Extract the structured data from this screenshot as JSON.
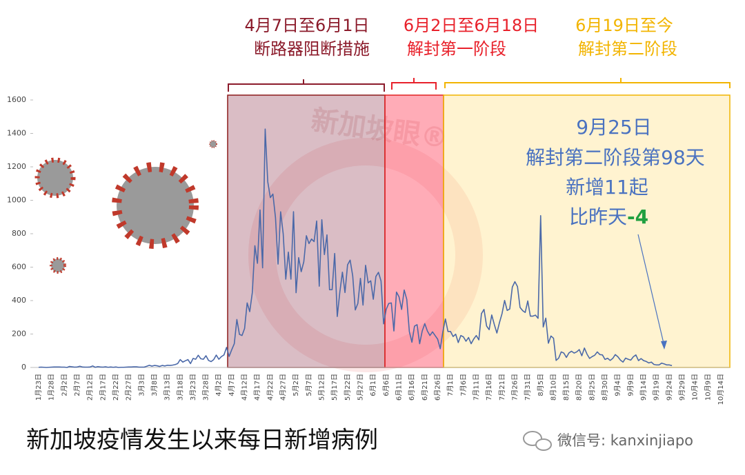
{
  "chart_data": {
    "type": "line",
    "title": "新加坡疫情发生以来每日新增病例",
    "categories": [
      "1月23日",
      null,
      null,
      null,
      null,
      "1月28日",
      null,
      null,
      null,
      null,
      "2月2日",
      null,
      null,
      null,
      null,
      "2月7日",
      null,
      null,
      null,
      null,
      "2月12日",
      null,
      null,
      null,
      null,
      "2月17日",
      null,
      null,
      null,
      null,
      "2月22日",
      null,
      null,
      null,
      null,
      "2月27日",
      null,
      null,
      null,
      null,
      "3月3日",
      null,
      null,
      null,
      null,
      "3月8日",
      null,
      null,
      null,
      null,
      "3月13日",
      null,
      null,
      null,
      null,
      "3月18日",
      null,
      null,
      null,
      null,
      "3月23日",
      null,
      null,
      null,
      null,
      "3月28日",
      null,
      null,
      null,
      null,
      "4月2日",
      null,
      null,
      null,
      null,
      "4月7日",
      null,
      null,
      null,
      null,
      "4月12日",
      null,
      null,
      null,
      null,
      "4月17日",
      null,
      null,
      null,
      null,
      "4月22日",
      null,
      null,
      null,
      null,
      "4月27日",
      null,
      null,
      null,
      null,
      "5月2日",
      null,
      null,
      null,
      null,
      "5月7日",
      null,
      null,
      null,
      null,
      "5月12日",
      null,
      null,
      null,
      null,
      "5月17日",
      null,
      null,
      null,
      null,
      "5月22日",
      null,
      null,
      null,
      null,
      "5月27日",
      null,
      null,
      null,
      null,
      "6月1日",
      null,
      null,
      null,
      null,
      "6月6日",
      null,
      null,
      null,
      null,
      "6月11日",
      null,
      null,
      null,
      null,
      "6月16日",
      null,
      null,
      null,
      null,
      "6月21日",
      null,
      null,
      null,
      null,
      "6月26日",
      null,
      null,
      null,
      null,
      "7月1日",
      null,
      null,
      null,
      null,
      "7月6日",
      null,
      null,
      null,
      null,
      "7月11日",
      null,
      null,
      null,
      null,
      "7月16日",
      null,
      null,
      null,
      null,
      "7月21日",
      null,
      null,
      null,
      null,
      "7月26日",
      null,
      null,
      null,
      null,
      "7月31日",
      null,
      null,
      null,
      null,
      "8月5日",
      null,
      null,
      null,
      null,
      "8月10日",
      null,
      null,
      null,
      null,
      "8月15日",
      null,
      null,
      null,
      null,
      "8月20日",
      null,
      null,
      null,
      null,
      "8月25日",
      null,
      null,
      null,
      null,
      "8月30日",
      null,
      null,
      null,
      null,
      "9月4日",
      null,
      null,
      null,
      null,
      "9月9日",
      null,
      null,
      null,
      null,
      "9月14日",
      null,
      null,
      null,
      null,
      "9月19日",
      null,
      null,
      null,
      null,
      "9月24日",
      null,
      null,
      null,
      null,
      "9月29日",
      null,
      null,
      null,
      null,
      "10月4日",
      null,
      null,
      null,
      null,
      "10月9日",
      null,
      null,
      null,
      null,
      "10月14日"
    ],
    "series": [
      {
        "color": "#4a68a8",
        "values": [
          1,
          2,
          1,
          0,
          1,
          2,
          3,
          3,
          3,
          2,
          2,
          0,
          6,
          4,
          2,
          3,
          7,
          3,
          2,
          2,
          3,
          9,
          1,
          5,
          3,
          2,
          4,
          1,
          3,
          1,
          3,
          0,
          1,
          1,
          2,
          3,
          3,
          4,
          4,
          2,
          2,
          2,
          7,
          13,
          8,
          12,
          10,
          6,
          12,
          9,
          13,
          12,
          14,
          17,
          23,
          47,
          32,
          40,
          47,
          23,
          54,
          49,
          73,
          52,
          49,
          70,
          42,
          35,
          47,
          74,
          49,
          65,
          75,
          120,
          66,
          106,
          142,
          287,
          198,
          191,
          233,
          386,
          334,
          447,
          728,
          623,
          942,
          596,
          1426,
          1111,
          1016,
          1037,
          897,
          618,
          931,
          799,
          528,
          690,
          528,
          932,
          447,
          657,
          573,
          632,
          788,
          741,
          768,
          753,
          876,
          486,
          884,
          675,
          793,
          465,
          465,
          682,
          305,
          451,
          570,
          448,
          614,
          642,
          548,
          344,
          383,
          533,
          373,
          611,
          506,
          518,
          408,
          544,
          569,
          517,
          261,
          347,
          383,
          386,
          218,
          451,
          422,
          347,
          463,
          407,
          214,
          151,
          247,
          256,
          142,
          218,
          262,
          218,
          191,
          213,
          191,
          169,
          112,
          213,
          290,
          215,
          215,
          185,
          199,
          149,
          191,
          183,
          157,
          179,
          142,
          170,
          191,
          165,
          322,
          347,
          248,
          226,
          314,
          257,
          206,
          268,
          322,
          401,
          341,
          350,
          481,
          513,
          484,
          359,
          340,
          329,
          398,
          307,
          307,
          313,
          294,
          908,
          242,
          295,
          145,
          188,
          175,
          42,
          56,
          93,
          86,
          60,
          87,
          97,
          86,
          93,
          107,
          70,
          116,
          80,
          54,
          65,
          73,
          93,
          77,
          75,
          48,
          55,
          42,
          54,
          77,
          64,
          44,
          32,
          56,
          49,
          44,
          64,
          75,
          41,
          53,
          41,
          36,
          27,
          32,
          18,
          15,
          15,
          26,
          21,
          15,
          15,
          11,
          null,
          null,
          null,
          null,
          null,
          null,
          null,
          null,
          null,
          null,
          null,
          null,
          null,
          null,
          null,
          null,
          null,
          null,
          null
        ]
      }
    ],
    "ylim": [
      0,
      1600
    ],
    "yticks": [
      0,
      200,
      400,
      600,
      800,
      1000,
      1200,
      1400,
      1600
    ],
    "phases": [
      {
        "dates": "4月7日至6月1日",
        "label": "断路器阻断措施",
        "color": "#8b1a2a"
      },
      {
        "dates": "6月2日至6月18日",
        "label": "解封第一阶段",
        "color": "#e8202a"
      },
      {
        "dates": "6月19日至今",
        "label": "解封第二阶段",
        "color": "#f2b400"
      }
    ],
    "note": {
      "date": "9月25日",
      "phase_day": "解封第二阶段第98天",
      "new_cases": "新增11起",
      "compare": "比昨天",
      "change": "-4"
    }
  },
  "watermark": "新加坡眼®",
  "wechat": "微信号: kanxinjiapo"
}
